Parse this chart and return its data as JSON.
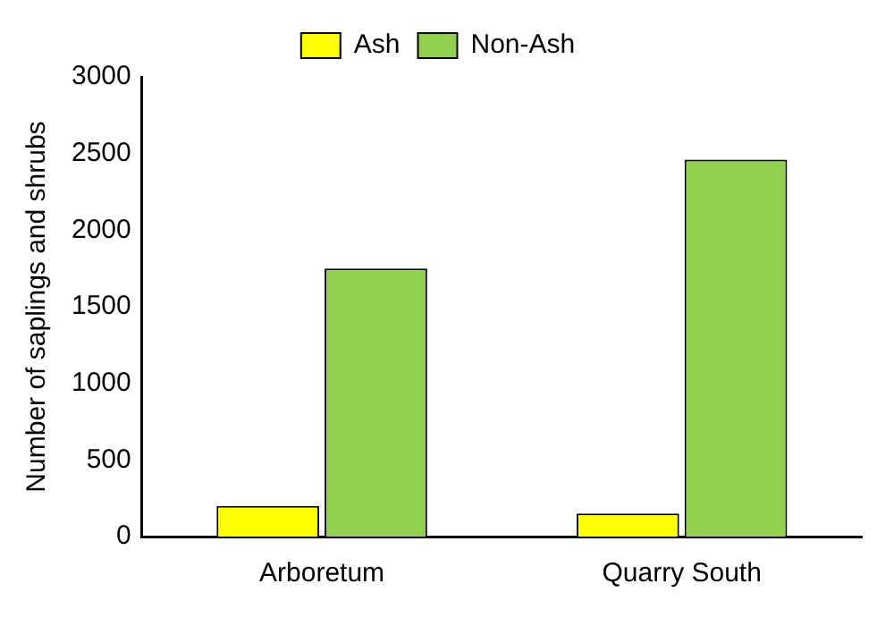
{
  "chart_data": {
    "type": "bar",
    "ylabel": "Number of saplings and shrubs",
    "categories": [
      "Arboretum",
      "Quarry South"
    ],
    "series": [
      {
        "name": "Ash",
        "color": "#ffff00",
        "values": [
          200,
          150
        ]
      },
      {
        "name": "Non-Ash",
        "color": "#92d050",
        "values": [
          1750,
          2460
        ]
      }
    ],
    "ylim": [
      0,
      3000
    ],
    "yticks": [
      0,
      500,
      1000,
      1500,
      2000,
      2500,
      3000
    ],
    "grid": false,
    "legend": "top"
  }
}
